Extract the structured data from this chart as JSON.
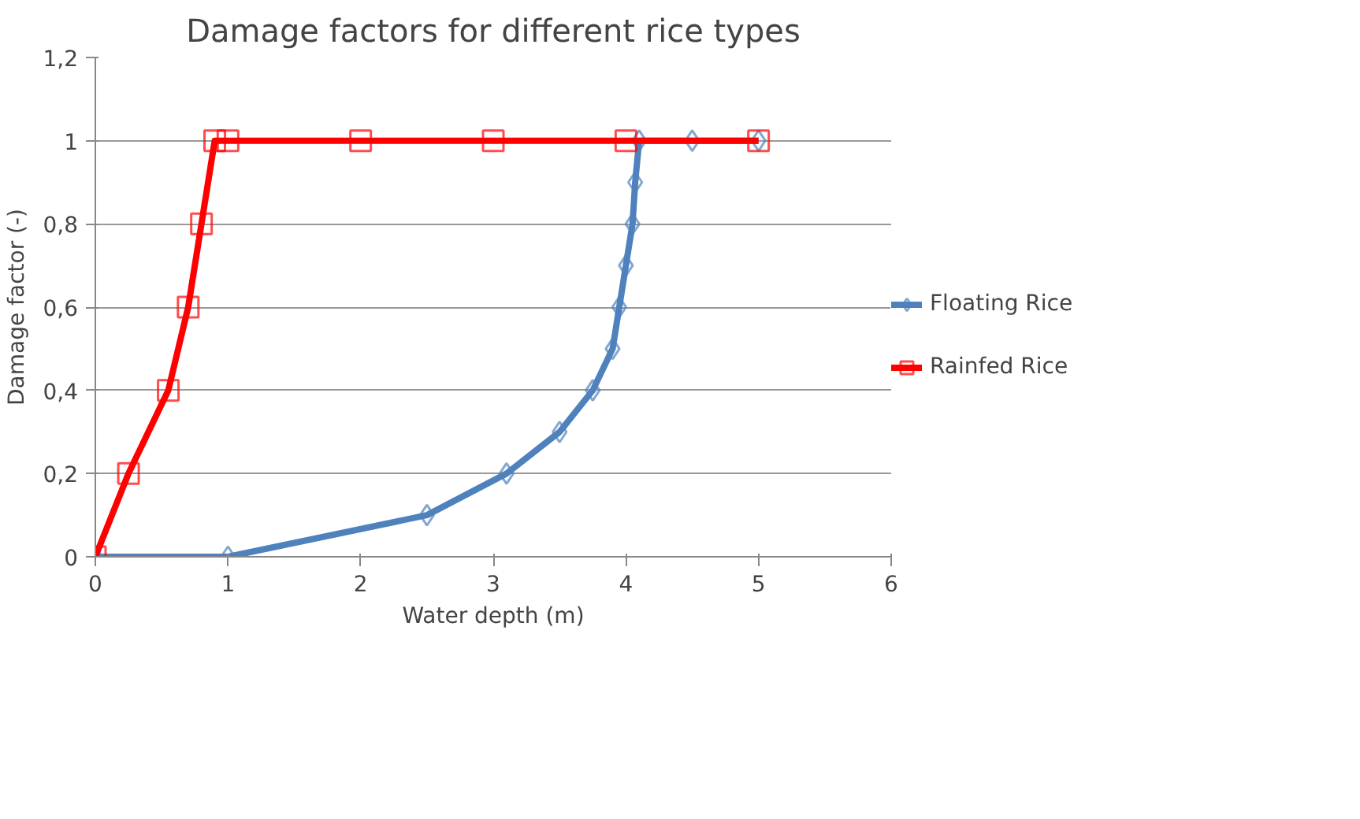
{
  "chart_data": {
    "type": "line",
    "title": "Damage factors for different rice types",
    "xlabel": "Water depth (m)",
    "ylabel": "Damage factor (-)",
    "series": [
      {
        "name": "Floating Rice",
        "color": "#4f81bd",
        "marker": "diamond",
        "x": [
          0,
          1,
          2.5,
          3.1,
          3.5,
          3.75,
          3.9,
          3.95,
          4.0,
          4.05,
          4.07,
          4.1,
          4.5,
          5
        ],
        "values": [
          0,
          0,
          0.1,
          0.2,
          0.3,
          0.4,
          0.5,
          0.6,
          0.7,
          0.8,
          0.9,
          1,
          1,
          1
        ]
      },
      {
        "name": "Rainfed Rice",
        "color": "#ff0000",
        "marker": "square",
        "x": [
          0,
          0.25,
          0.55,
          0.7,
          0.8,
          0.9,
          1,
          2,
          3,
          4,
          5
        ],
        "values": [
          0,
          0.2,
          0.4,
          0.6,
          0.8,
          1,
          1,
          1,
          1,
          1,
          1
        ]
      }
    ],
    "xlim": [
      0,
      6
    ],
    "xticks": [
      0,
      1,
      2,
      3,
      4,
      5,
      6
    ],
    "ylim": [
      0,
      1.2
    ],
    "yticks": [
      0,
      {
        "value": 0.2,
        "label": "0,2"
      },
      {
        "value": 0.4,
        "label": "0,4"
      },
      {
        "value": 0.6,
        "label": "0,6"
      },
      {
        "value": 0.8,
        "label": "0,8"
      },
      1,
      {
        "value": 1.2,
        "label": "1,2"
      }
    ],
    "grid": "y",
    "legend": "right"
  }
}
